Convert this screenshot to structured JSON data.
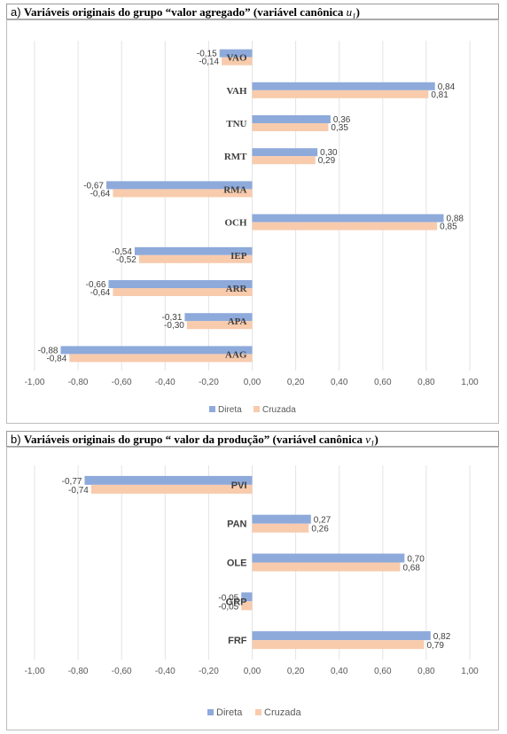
{
  "colors": {
    "direta": "#8eaadb",
    "cruzada": "#f8cbad"
  },
  "chart_data": [
    {
      "type": "bar",
      "orientation": "horizontal",
      "title_prefix": "a)",
      "title_text": "Variáveis originais do grupo “valor agregado” (variável canônica ",
      "title_var": "u",
      "title_sub": "1",
      "title_suffix": ")",
      "categories": [
        "VAO",
        "VAH",
        "TNU",
        "RMT",
        "RMA",
        "OCH",
        "IEP",
        "ARR",
        "APA",
        "AAG"
      ],
      "series": [
        {
          "name": "Direta",
          "values": [
            -0.15,
            0.84,
            0.36,
            0.3,
            -0.67,
            0.88,
            -0.54,
            -0.66,
            -0.31,
            -0.88
          ]
        },
        {
          "name": "Cruzada",
          "values": [
            -0.14,
            0.81,
            0.35,
            0.29,
            -0.64,
            0.85,
            -0.52,
            -0.64,
            -0.3,
            -0.84
          ]
        }
      ],
      "xlim": [
        -1.0,
        1.0
      ],
      "xticks": [
        "-1,00",
        "-0,80",
        "-0,60",
        "-0,40",
        "-0,20",
        "0,00",
        "0,20",
        "0,40",
        "0,60",
        "0,80",
        "1,00"
      ],
      "legend_position": "bottom",
      "grid": true
    },
    {
      "type": "bar",
      "orientation": "horizontal",
      "title_prefix": "b)",
      "title_text": "Variáveis originais do grupo “ valor da produção” (variável canônica ",
      "title_var": "v",
      "title_sub": "1",
      "title_suffix": ")",
      "categories": [
        "PVI",
        "PAN",
        "OLE",
        "GRP",
        "FRF"
      ],
      "series": [
        {
          "name": "Direta",
          "values": [
            -0.77,
            0.27,
            0.7,
            -0.05,
            0.82
          ]
        },
        {
          "name": "Cruzada",
          "values": [
            -0.74,
            0.26,
            0.68,
            -0.05,
            0.79
          ]
        }
      ],
      "xlim": [
        -1.0,
        1.0
      ],
      "xticks": [
        "-1,00",
        "-0,80",
        "-0,60",
        "-0,40",
        "-0,20",
        "0,00",
        "0,20",
        "0,40",
        "0,60",
        "0,80",
        "1,00"
      ],
      "legend_position": "bottom",
      "grid": true
    }
  ]
}
